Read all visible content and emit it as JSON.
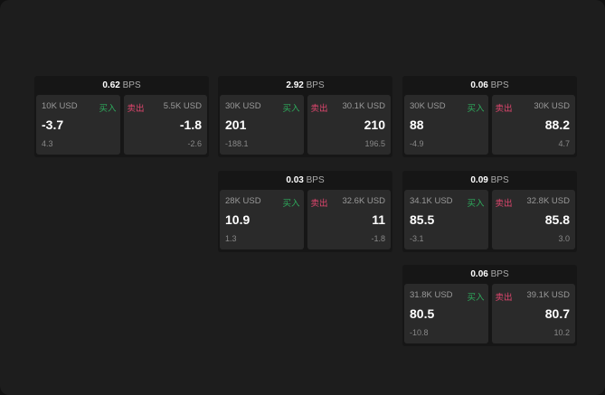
{
  "buy_label": "买入",
  "sell_label": "卖出",
  "unit": "BPS",
  "colors": {
    "buy": "#2eab5c",
    "sell": "#e0466e"
  },
  "cards": [
    {
      "spread": "0.62",
      "buy": {
        "qty": "10K USD",
        "price": "-3.7",
        "change": "4.3"
      },
      "sell": {
        "qty": "5.5K USD",
        "price": "-1.8",
        "change": "-2.6"
      }
    },
    {
      "spread": "2.92",
      "buy": {
        "qty": "30K USD",
        "price": "201",
        "change": "-188.1"
      },
      "sell": {
        "qty": "30.1K USD",
        "price": "210",
        "change": "196.5"
      }
    },
    {
      "spread": "0.06",
      "buy": {
        "qty": "30K USD",
        "price": "88",
        "change": "-4.9"
      },
      "sell": {
        "qty": "30K USD",
        "price": "88.2",
        "change": "4.7"
      }
    },
    {
      "spread": "0.03",
      "buy": {
        "qty": "28K USD",
        "price": "10.9",
        "change": "1.3"
      },
      "sell": {
        "qty": "32.6K USD",
        "price": "11",
        "change": "-1.8"
      }
    },
    {
      "spread": "0.09",
      "buy": {
        "qty": "34.1K USD",
        "price": "85.5",
        "change": "-3.1"
      },
      "sell": {
        "qty": "32.8K USD",
        "price": "85.8",
        "change": "3.0"
      }
    },
    {
      "spread": "0.06",
      "buy": {
        "qty": "31.8K USD",
        "price": "80.5",
        "change": "-10.8"
      },
      "sell": {
        "qty": "39.1K USD",
        "price": "80.7",
        "change": "10.2"
      }
    }
  ]
}
